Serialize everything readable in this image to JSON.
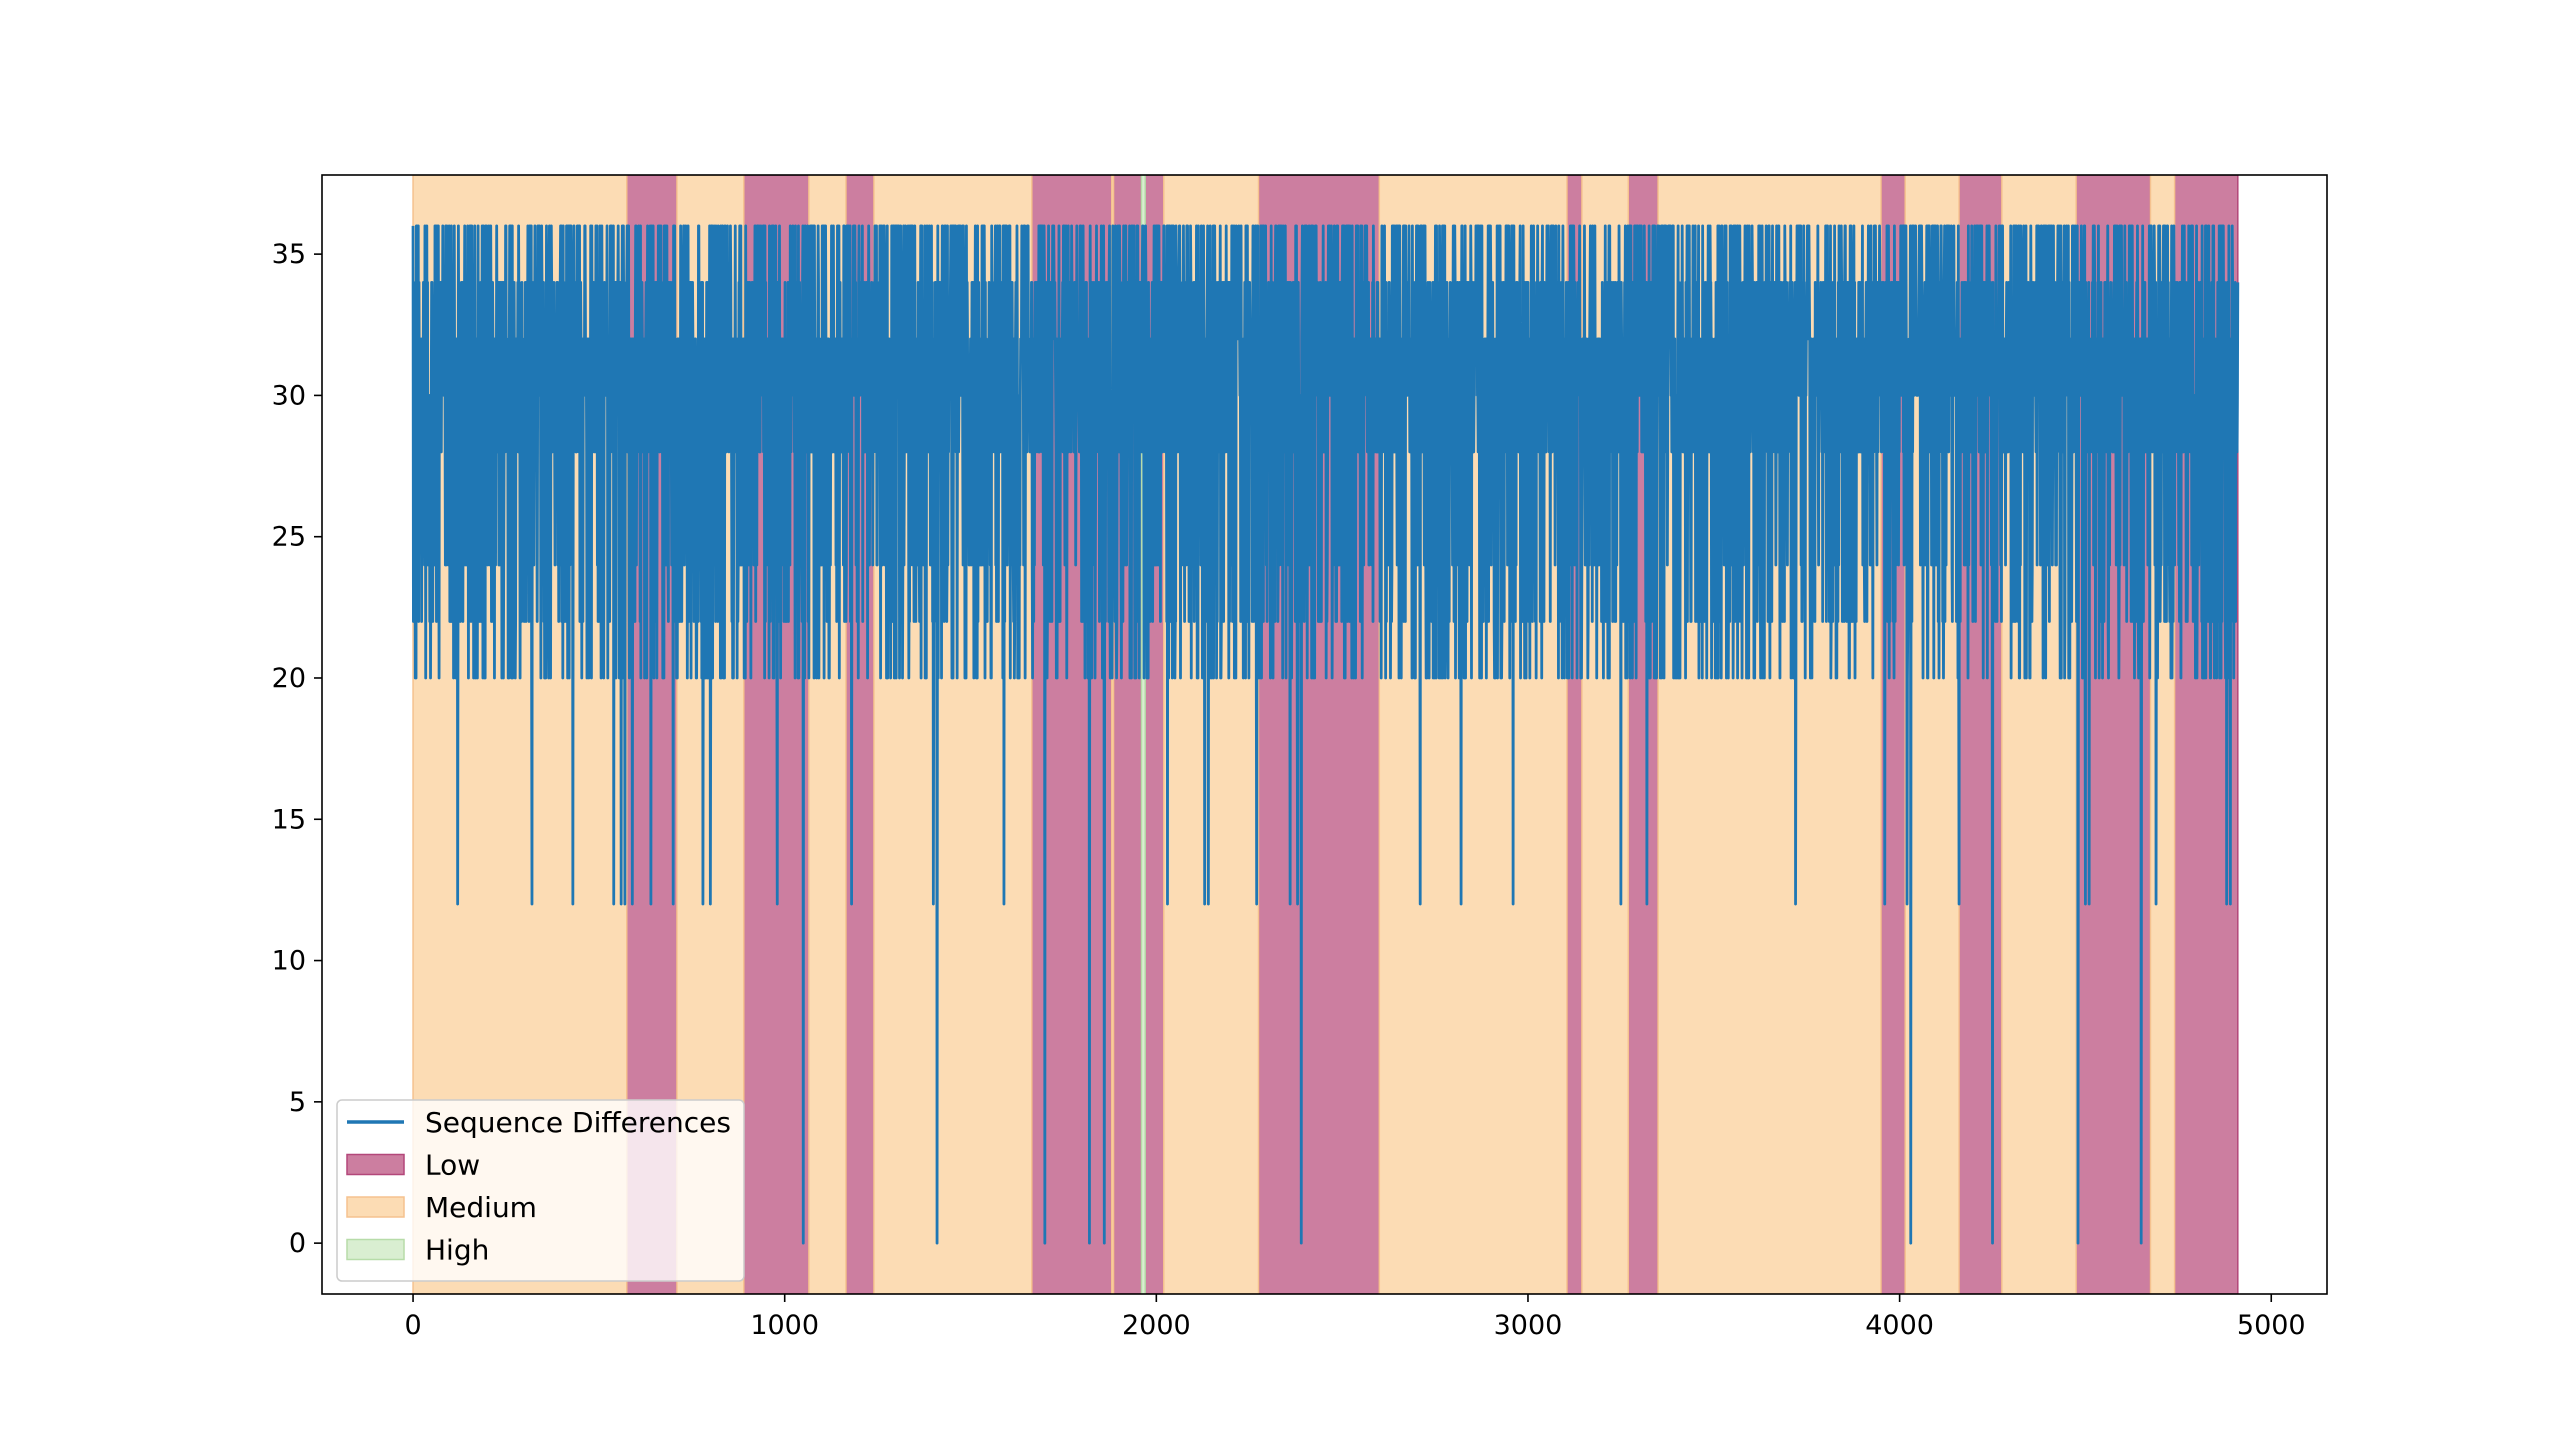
{
  "chart_data": {
    "type": "line",
    "title": "",
    "xlabel": "",
    "ylabel": "",
    "xlim": [
      -245,
      5150
    ],
    "ylim": [
      -1.8,
      37.8
    ],
    "x_ticks": [
      0,
      1000,
      2000,
      3000,
      4000,
      5000
    ],
    "x_tick_labels": [
      "0",
      "1000",
      "2000",
      "3000",
      "4000",
      "5000"
    ],
    "y_ticks": [
      0,
      5,
      10,
      15,
      20,
      25,
      30,
      35
    ],
    "y_tick_labels": [
      "0",
      "5",
      "10",
      "15",
      "20",
      "25",
      "30",
      "35"
    ],
    "grid": false,
    "legend_position": "lower-left",
    "series": [
      {
        "name": "Sequence Differences",
        "color": "#1f77b4",
        "kind": "line",
        "x_range": [
          0,
          4910
        ],
        "typical_band": [
          22,
          36
        ],
        "values_observed": [
          0,
          12,
          20,
          22,
          24,
          28,
          30,
          32,
          34,
          36
        ],
        "drop_to_zero_x": [
          1050,
          1410,
          1700,
          1820,
          1860,
          2390,
          4030,
          4250,
          4480,
          4650
        ],
        "drop_to_twelve_x": [
          120,
          320,
          430,
          540,
          560,
          570,
          590,
          640,
          700,
          780,
          800,
          980,
          1180,
          1400,
          1590,
          2030,
          2130,
          2140,
          2270,
          2360,
          2380,
          2710,
          2820,
          2960,
          3250,
          3320,
          3720,
          3960,
          4020,
          4160,
          4500,
          4510,
          4690,
          4880,
          4890
        ]
      }
    ],
    "bands": [
      {
        "name": "Low",
        "color": "#cc7ea0",
        "edge_color": "#b3477a",
        "intervals": [
          [
            575,
            710
          ],
          [
            890,
            1065
          ],
          [
            1165,
            1240
          ],
          [
            1665,
            1880
          ],
          [
            1885,
            1960
          ],
          [
            1970,
            2020
          ],
          [
            2275,
            2600
          ],
          [
            3105,
            3145
          ],
          [
            3270,
            3350
          ],
          [
            3950,
            4015
          ],
          [
            4160,
            4275
          ],
          [
            4475,
            4675
          ],
          [
            4740,
            4910
          ]
        ]
      },
      {
        "name": "Medium",
        "color": "#fcdcb4",
        "edge_color": "#f5c28f",
        "intervals": [
          [
            0,
            575
          ],
          [
            710,
            890
          ],
          [
            1065,
            1165
          ],
          [
            1240,
            1665
          ],
          [
            1880,
            1885
          ],
          [
            2020,
            2275
          ],
          [
            2600,
            3105
          ],
          [
            3145,
            3270
          ],
          [
            3350,
            3950
          ],
          [
            4015,
            4160
          ],
          [
            4275,
            4475
          ],
          [
            4675,
            4740
          ]
        ]
      },
      {
        "name": "High",
        "color": "#d9eed1",
        "edge_color": "#b7dca9",
        "intervals": [
          [
            1960,
            1970
          ]
        ]
      }
    ],
    "legend": [
      {
        "label": "Sequence Differences",
        "kind": "line",
        "color": "#1f77b4"
      },
      {
        "label": "Low",
        "kind": "patch",
        "color": "#cc7ea0",
        "edge_color": "#b3477a"
      },
      {
        "label": "Medium",
        "kind": "patch",
        "color": "#fcdcb4",
        "edge_color": "#f5c28f"
      },
      {
        "label": "High",
        "kind": "patch",
        "color": "#d9eed1",
        "edge_color": "#b7dca9"
      }
    ]
  }
}
